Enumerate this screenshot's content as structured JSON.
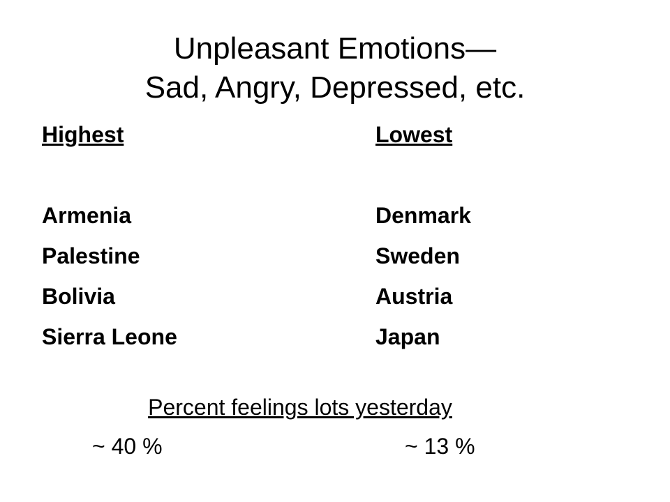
{
  "slide": {
    "title_line1": "Unpleasant Emotions—",
    "title_line2": "Sad, Angry, Depressed, etc.",
    "highest": {
      "header": "Highest",
      "countries": [
        "Armenia",
        "Palestine",
        "Bolivia",
        "Sierra Leone"
      ],
      "percent": "~ 40 %"
    },
    "lowest": {
      "header": "Lowest",
      "countries": [
        "Denmark",
        "Sweden",
        "Austria",
        "Japan"
      ],
      "percent": "~ 13 %"
    },
    "caption": "Percent feelings lots yesterday"
  }
}
